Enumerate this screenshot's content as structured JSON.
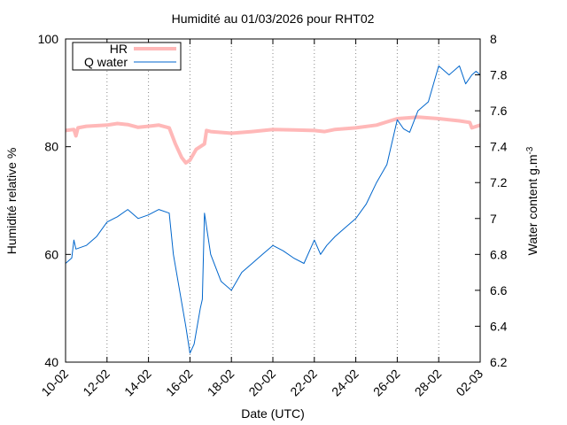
{
  "chart_data": {
    "type": "line",
    "title": "Humidité au 01/03/2026 pour RHT02",
    "xlabel": "Date (UTC)",
    "ylabel": "Humidité relative %",
    "y2label": "Water content g.m",
    "y2label_sup": "-3",
    "x_ticks": [
      "10-02",
      "12-02",
      "14-02",
      "16-02",
      "18-02",
      "20-02",
      "22-02",
      "24-02",
      "26-02",
      "28-02",
      "02-03"
    ],
    "x_tick_days": [
      0,
      2,
      4,
      6,
      8,
      10,
      12,
      14,
      16,
      18,
      20
    ],
    "xlim": [
      0,
      20
    ],
    "ylim": [
      40,
      100
    ],
    "y_ticks": [
      "40",
      "60",
      "80",
      "100"
    ],
    "y_tick_values": [
      40,
      60,
      80,
      100
    ],
    "y2lim": [
      6.2,
      8.0
    ],
    "y2_ticks": [
      "6.2",
      "6.4",
      "6.6",
      "6.8",
      "7",
      "7.2",
      "7.4",
      "7.6",
      "7.8",
      "8"
    ],
    "y2_tick_values": [
      6.2,
      6.4,
      6.6,
      6.8,
      7.0,
      7.2,
      7.4,
      7.6,
      7.8,
      8.0
    ],
    "grid": "vertical-dotted",
    "legend_position": "top-left",
    "series": [
      {
        "name": "HR",
        "axis": "left",
        "color": "#ffb8b8",
        "x": [
          0,
          0.4,
          0.5,
          0.6,
          1,
          2,
          2.5,
          3,
          3.5,
          4,
          4.5,
          5,
          5.3,
          5.6,
          5.8,
          6,
          6.3,
          6.7,
          6.8,
          7,
          8,
          9,
          10,
          11,
          12,
          12.5,
          13,
          14,
          15,
          16,
          17,
          18,
          19,
          19.5,
          19.6,
          20
        ],
        "y": [
          83,
          83.2,
          82,
          83.5,
          83.8,
          84,
          84.3,
          84.1,
          83.6,
          83.8,
          84,
          83.5,
          80.5,
          78,
          77,
          77.5,
          79.5,
          80.5,
          83,
          82.8,
          82.5,
          82.8,
          83.2,
          83.1,
          83,
          82.8,
          83.2,
          83.5,
          84,
          85.2,
          85.5,
          85.2,
          84.8,
          84.5,
          83.5,
          84
        ]
      },
      {
        "name": "Q water",
        "axis": "right",
        "color": "#0066cc",
        "x": [
          0,
          0.3,
          0.4,
          0.5,
          1,
          1.5,
          2,
          2.5,
          3,
          3.5,
          4,
          4.5,
          5,
          5.2,
          5.5,
          5.8,
          6,
          6.2,
          6.5,
          6.6,
          6.7,
          7,
          7.5,
          8,
          8.5,
          9,
          9.5,
          10,
          10.5,
          11,
          11.5,
          12,
          12.3,
          12.6,
          13,
          13.5,
          14,
          14.5,
          15,
          15.5,
          16,
          16.3,
          16.6,
          17,
          17.5,
          18,
          18.5,
          19,
          19.3,
          19.6,
          19.8,
          20
        ],
        "y": [
          6.75,
          6.78,
          6.88,
          6.83,
          6.85,
          6.9,
          6.98,
          7.01,
          7.05,
          7.0,
          7.02,
          7.05,
          7.03,
          6.8,
          6.6,
          6.4,
          6.25,
          6.3,
          6.5,
          6.55,
          7.03,
          6.8,
          6.65,
          6.6,
          6.7,
          6.75,
          6.8,
          6.85,
          6.82,
          6.78,
          6.75,
          6.88,
          6.8,
          6.85,
          6.9,
          6.95,
          7.0,
          7.08,
          7.2,
          7.3,
          7.55,
          7.5,
          7.48,
          7.6,
          7.65,
          7.85,
          7.8,
          7.85,
          7.75,
          7.8,
          7.82,
          7.8
        ]
      }
    ]
  }
}
